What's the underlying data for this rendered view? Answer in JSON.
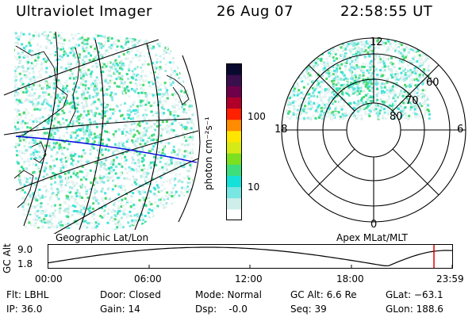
{
  "header": {
    "instrument": "Ultraviolet Imager",
    "date": "26 Aug 07",
    "time": "22:58:55 UT"
  },
  "colorbar": {
    "unit_label": "photon cm⁻²s⁻¹",
    "ticks": [
      "100",
      "10"
    ],
    "scale": "log",
    "colors": [
      "#ffffff",
      "#cfeee9",
      "#78e6e2",
      "#16e1d9",
      "#3ede7c",
      "#7cdf1f",
      "#d6ea17",
      "#ffe600",
      "#ff8c00",
      "#ff2000",
      "#b0002a",
      "#6d0049",
      "#3a0f4d",
      "#0a0a30"
    ]
  },
  "left_panel": {
    "caption": "Geographic Lat/Lon"
  },
  "right_panel": {
    "caption": "Apex MLat/MLT",
    "mlt_labels": {
      "top": "12",
      "left": "18",
      "right": "6",
      "bottom": "0"
    },
    "mlat_labels": [
      "60",
      "70",
      "80"
    ]
  },
  "altitude_plot": {
    "ylabel": "GC Alt",
    "yticks": [
      "9.0",
      "1.8"
    ],
    "xticks": [
      "00:00",
      "06:00",
      "12:00",
      "18:00",
      "23:59"
    ],
    "current_marker_color": "#e00000"
  },
  "info": {
    "flt": "Flt: LBHL",
    "ip": "IP: 36.0",
    "door": "Door: Closed",
    "gain": "Gain: 14",
    "mode": "Mode: Normal",
    "dsp": "Dsp:    -0.0",
    "gcalt": "GC Alt: 6.6 Re",
    "seq": "Seq: 39",
    "glat": "GLat: −63.1",
    "glon": "GLon: 188.6"
  }
}
